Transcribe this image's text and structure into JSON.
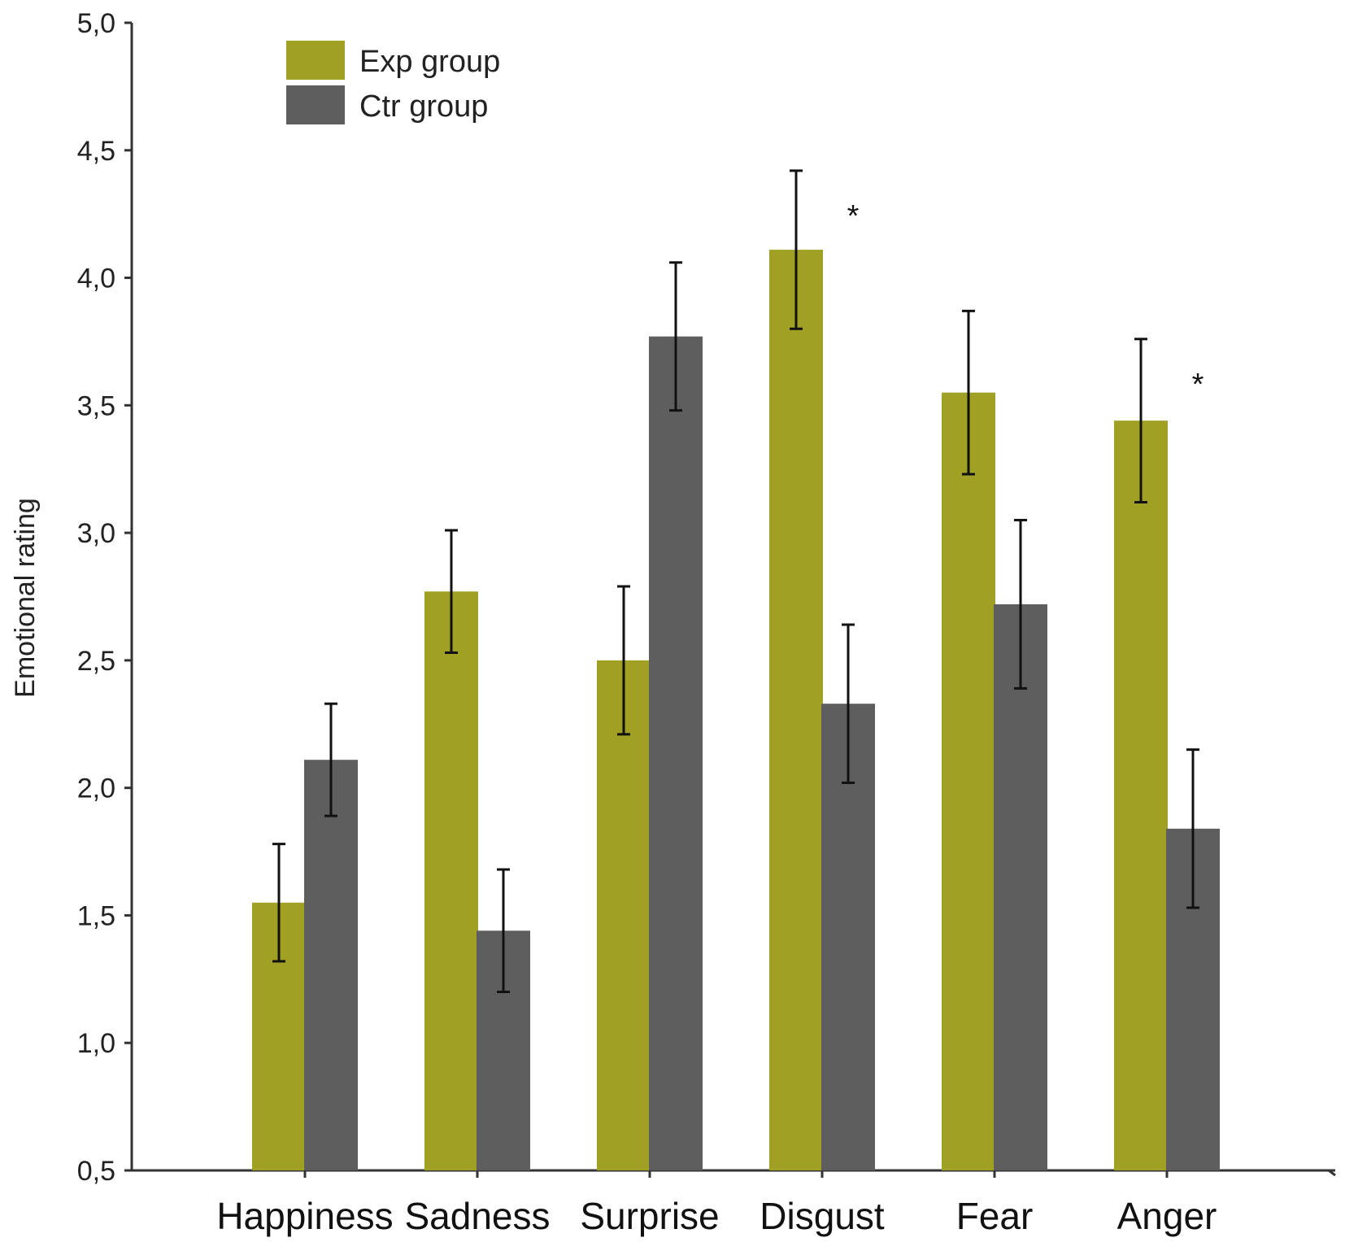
{
  "chart_data": {
    "type": "bar",
    "title": "",
    "xlabel": "",
    "ylabel": "Emotional rating",
    "ylim": [
      0.5,
      5.0
    ],
    "yticks": [
      "0,5",
      "1,0",
      "1,5",
      "2,0",
      "2,5",
      "3,0",
      "3,5",
      "4,0",
      "4,5",
      "5,0"
    ],
    "ytick_values": [
      0.5,
      1.0,
      1.5,
      2.0,
      2.5,
      3.0,
      3.5,
      4.0,
      4.5,
      5.0
    ],
    "categories": [
      "Happiness",
      "Sadness",
      "Surprise",
      "Disgust",
      "Fear",
      "Anger"
    ],
    "series": [
      {
        "name": "Exp group",
        "color": "#a0a024",
        "values": [
          1.55,
          2.77,
          2.5,
          4.11,
          3.55,
          3.44
        ],
        "errors": [
          0.23,
          0.24,
          0.29,
          0.31,
          0.32,
          0.32
        ]
      },
      {
        "name": "Ctr group",
        "color": "#5e5e5e",
        "values": [
          2.11,
          1.44,
          3.77,
          2.33,
          2.72,
          1.84
        ],
        "errors": [
          0.22,
          0.24,
          0.29,
          0.31,
          0.33,
          0.31
        ]
      }
    ],
    "significance": [
      {
        "category": "Disgust",
        "mark": "*"
      },
      {
        "category": "Anger",
        "mark": "*"
      }
    ],
    "legend_position": "top-left",
    "grid": false
  }
}
